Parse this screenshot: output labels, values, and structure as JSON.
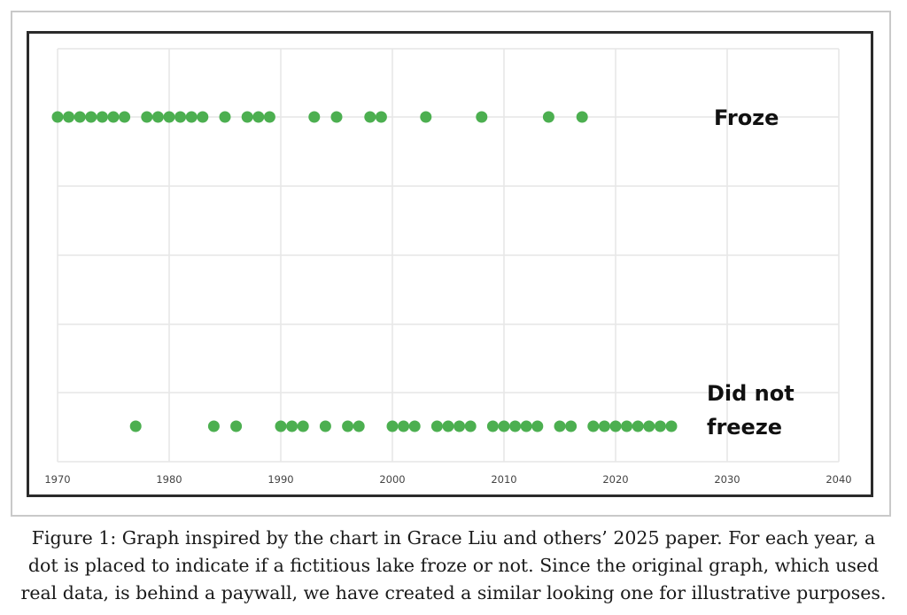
{
  "chart_data": {
    "type": "scatter",
    "xlim": [
      1970,
      2040
    ],
    "x_ticks": [
      "1970",
      "1980",
      "1990",
      "2000",
      "2010",
      "2020",
      "2030",
      "2040"
    ],
    "grid": true,
    "legend": "none",
    "colors": {
      "point": "#4caf50",
      "grid": "#e6e6e6",
      "tick_text": "#444444",
      "label_text": "#111111"
    },
    "categories": [
      {
        "key": "froze",
        "label_lines": [
          "Froze"
        ]
      },
      {
        "key": "did_not_freeze",
        "label_lines": [
          "Did not",
          "freeze"
        ]
      }
    ],
    "froze_years": [
      1970,
      1971,
      1972,
      1973,
      1974,
      1975,
      1976,
      1978,
      1979,
      1980,
      1981,
      1982,
      1983,
      1985,
      1987,
      1988,
      1989,
      1993,
      1995,
      1998,
      1999,
      2003,
      2008,
      2014,
      2017
    ],
    "did_not_freeze_years": [
      1977,
      1984,
      1986,
      1990,
      1991,
      1992,
      1994,
      1996,
      1997,
      2000,
      2001,
      2002,
      2004,
      2005,
      2006,
      2007,
      2009,
      2010,
      2011,
      2012,
      2013,
      2015,
      2016,
      2018,
      2019,
      2020,
      2021,
      2022,
      2023,
      2024,
      2025
    ]
  },
  "caption": {
    "lines": [
      "Figure 1: Graph inspired by the chart in Grace Liu and others’ 2025 paper. For each year, a",
      "dot is placed to indicate if a fictitious lake froze or not. Since the original graph, which used",
      "real data, is behind a paywall, we have created a similar looking one for illustrative purposes."
    ]
  }
}
